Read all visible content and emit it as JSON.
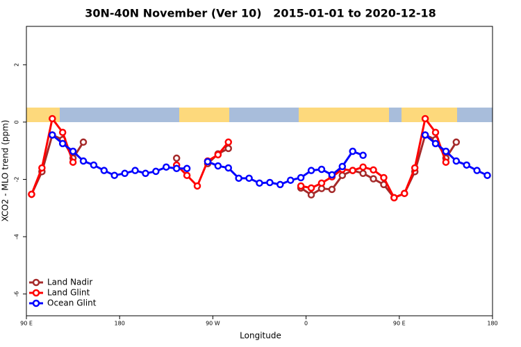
{
  "chart_data": {
    "type": "line",
    "title": "30N-40N November (Ver 10)   2015-01-01 to 2020-12-18",
    "x_label": "Longitude",
    "y_label": "XCO2 - MLO trend (ppm)",
    "x": [
      95,
      105,
      115,
      125,
      135,
      145,
      155,
      165,
      175,
      185,
      195,
      205,
      215,
      225,
      235,
      245,
      255,
      265,
      275,
      285,
      295,
      305,
      315,
      325,
      335,
      345,
      355,
      365,
      375,
      385,
      395,
      405,
      415,
      425,
      435,
      445,
      455,
      465,
      475,
      485,
      495,
      505,
      515,
      525,
      535
    ],
    "series": [
      {
        "name": "Land Nadir",
        "color": "#a52a2a",
        "values": [
          -2.52,
          -1.73,
          -0.45,
          -0.61,
          -1.26,
          -0.7,
          null,
          null,
          null,
          null,
          null,
          null,
          null,
          null,
          -1.26,
          null,
          null,
          -1.45,
          -1.11,
          -0.92,
          null,
          null,
          null,
          null,
          null,
          null,
          -2.3,
          -2.54,
          -2.32,
          -2.35,
          -1.86,
          -1.69,
          -1.79,
          -1.98,
          -2.18,
          -2.64,
          -2.49,
          -1.73,
          -0.45,
          -0.61,
          -1.26,
          -0.7,
          null,
          null,
          null
        ]
      },
      {
        "name": "Land Glint",
        "color": "#ff0000",
        "values": [
          -2.52,
          -1.6,
          0.12,
          -0.36,
          -1.4,
          null,
          null,
          null,
          null,
          null,
          null,
          null,
          null,
          null,
          -1.5,
          -1.86,
          -2.23,
          -1.36,
          -1.14,
          -0.7,
          null,
          null,
          null,
          null,
          null,
          null,
          -2.23,
          -2.3,
          -2.13,
          -1.91,
          -1.65,
          -1.69,
          -1.57,
          -1.67,
          -1.94,
          -2.64,
          -2.49,
          -1.6,
          0.12,
          -0.36,
          -1.4,
          null,
          null,
          null,
          null
        ]
      },
      {
        "name": "Ocean Glint",
        "color": "#0000ff",
        "values": [
          null,
          null,
          -0.45,
          -0.75,
          -1.02,
          -1.36,
          -1.5,
          -1.69,
          -1.86,
          -1.79,
          -1.69,
          -1.79,
          -1.72,
          -1.57,
          -1.62,
          -1.62,
          null,
          -1.38,
          -1.53,
          -1.6,
          -1.96,
          -1.96,
          -2.13,
          -2.11,
          -2.18,
          -2.03,
          -1.94,
          -1.69,
          -1.65,
          -1.84,
          -1.55,
          -1.02,
          -1.16,
          null,
          null,
          null,
          null,
          null,
          -0.45,
          -0.75,
          -1.02,
          -1.36,
          -1.5,
          -1.69,
          -1.86
        ]
      }
    ],
    "xlim": [
      90,
      540
    ],
    "xticks": [
      {
        "value": 90,
        "label": "90 E"
      },
      180,
      {
        "value": 270,
        "label": "90 W"
      },
      {
        "value": 360,
        "label": "0"
      },
      {
        "value": 450,
        "label": "90 E"
      },
      {
        "value": 540,
        "label": "180"
      }
    ],
    "ylim": [
      -6.76,
      3.34
    ],
    "yticks": [
      -6,
      -4,
      -2,
      0,
      2
    ],
    "legend": "bottom-left"
  }
}
